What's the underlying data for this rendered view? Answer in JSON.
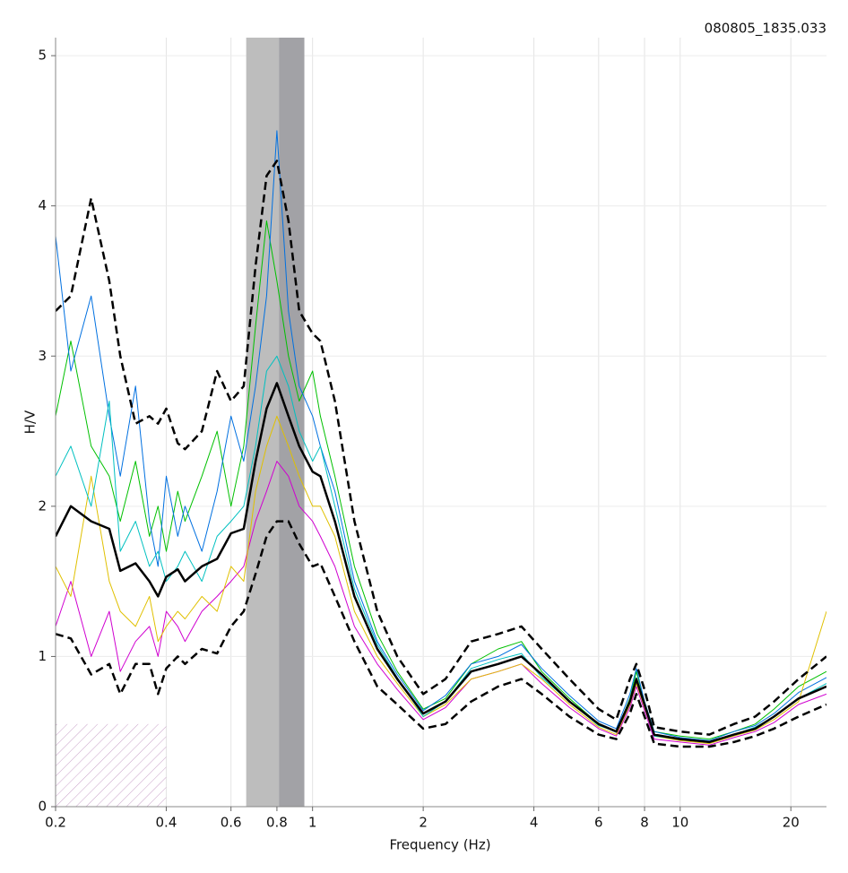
{
  "chart_data": {
    "type": "line",
    "title": "080805_1835.033",
    "xlabel": "Frequency (Hz)",
    "ylabel": "H/V",
    "xscale": "log",
    "grid": true,
    "xlim": [
      0.2,
      25
    ],
    "ylim": [
      0,
      5.12
    ],
    "xticks": [
      0.2,
      0.4,
      0.6,
      0.8,
      1,
      2,
      4,
      6,
      8,
      10,
      20
    ],
    "yticks": [
      0,
      1,
      2,
      3,
      4,
      5
    ],
    "shaded_ranges": [
      {
        "range": [
          0.66,
          0.81
        ],
        "color": "#bdbdbd"
      },
      {
        "range": [
          0.81,
          0.95
        ],
        "color": "#a2a2a6"
      }
    ],
    "hatched_region": {
      "xrange": [
        0.2,
        0.4
      ],
      "ytop": 0.55,
      "color": "#c9a0c9"
    },
    "x": [
      0.2,
      0.22,
      0.25,
      0.28,
      0.3,
      0.33,
      0.36,
      0.38,
      0.4,
      0.43,
      0.45,
      0.5,
      0.55,
      0.6,
      0.65,
      0.7,
      0.75,
      0.8,
      0.86,
      0.92,
      1.0,
      1.05,
      1.15,
      1.3,
      1.5,
      1.7,
      2.0,
      2.3,
      2.7,
      3.2,
      3.7,
      4.2,
      5,
      6,
      6.7,
      7.3,
      7.6,
      8,
      8.5,
      10,
      12,
      14,
      16,
      18,
      21,
      25
    ],
    "series": [
      {
        "color": "#00c000",
        "width": 1,
        "values": [
          2.6,
          3.1,
          2.4,
          2.2,
          1.9,
          2.3,
          1.8,
          2.0,
          1.7,
          2.1,
          1.9,
          2.2,
          2.5,
          2.0,
          2.4,
          3.2,
          3.9,
          3.5,
          3.0,
          2.7,
          2.9,
          2.6,
          2.2,
          1.6,
          1.15,
          0.9,
          0.65,
          0.72,
          0.95,
          1.05,
          1.1,
          0.9,
          0.72,
          0.55,
          0.5,
          0.72,
          0.9,
          0.7,
          0.5,
          0.47,
          0.45,
          0.5,
          0.55,
          0.65,
          0.8,
          0.9
        ]
      },
      {
        "color": "#d000d0",
        "width": 1,
        "values": [
          1.2,
          1.5,
          1.0,
          1.3,
          0.9,
          1.1,
          1.2,
          1.0,
          1.3,
          1.2,
          1.1,
          1.3,
          1.4,
          1.5,
          1.6,
          1.9,
          2.1,
          2.3,
          2.2,
          2.0,
          1.9,
          1.8,
          1.6,
          1.2,
          0.95,
          0.78,
          0.58,
          0.66,
          0.85,
          0.9,
          0.95,
          0.82,
          0.66,
          0.52,
          0.47,
          0.66,
          0.8,
          0.64,
          0.45,
          0.43,
          0.41,
          0.46,
          0.5,
          0.56,
          0.68,
          0.75
        ]
      },
      {
        "color": "#0070e0",
        "width": 1,
        "values": [
          3.8,
          2.9,
          3.4,
          2.6,
          2.2,
          2.8,
          1.9,
          1.6,
          2.2,
          1.8,
          2.0,
          1.7,
          2.1,
          2.6,
          2.3,
          2.8,
          3.4,
          4.5,
          3.3,
          2.8,
          2.6,
          2.4,
          2.1,
          1.5,
          1.1,
          0.88,
          0.64,
          0.74,
          0.95,
          1.0,
          1.08,
          0.92,
          0.74,
          0.57,
          0.52,
          0.75,
          0.92,
          0.7,
          0.5,
          0.46,
          0.44,
          0.5,
          0.54,
          0.62,
          0.76,
          0.86
        ]
      },
      {
        "color": "#e0c000",
        "width": 1,
        "values": [
          1.6,
          1.4,
          2.2,
          1.5,
          1.3,
          1.2,
          1.4,
          1.1,
          1.2,
          1.3,
          1.25,
          1.4,
          1.3,
          1.6,
          1.5,
          2.1,
          2.4,
          2.6,
          2.4,
          2.2,
          2.0,
          2.0,
          1.8,
          1.3,
          1.0,
          0.82,
          0.6,
          0.68,
          0.85,
          0.9,
          0.95,
          0.85,
          0.68,
          0.53,
          0.48,
          0.68,
          0.82,
          0.66,
          0.47,
          0.44,
          0.42,
          0.47,
          0.51,
          0.58,
          0.7,
          1.3
        ]
      },
      {
        "color": "#00c0c0",
        "width": 1,
        "values": [
          2.2,
          2.4,
          2.0,
          2.7,
          1.7,
          1.9,
          1.6,
          1.7,
          1.5,
          1.6,
          1.7,
          1.5,
          1.8,
          1.9,
          2.0,
          2.4,
          2.9,
          3.0,
          2.8,
          2.5,
          2.3,
          2.4,
          2.0,
          1.45,
          1.08,
          0.86,
          0.6,
          0.7,
          0.92,
          0.98,
          1.02,
          0.86,
          0.7,
          0.54,
          0.5,
          0.7,
          0.86,
          0.68,
          0.47,
          0.45,
          0.43,
          0.48,
          0.53,
          0.6,
          0.72,
          0.82
        ]
      },
      {
        "color": "#000000",
        "width": 2.5,
        "dash": true,
        "values": [
          3.3,
          3.4,
          4.05,
          3.5,
          3.0,
          2.55,
          2.6,
          2.55,
          2.65,
          2.42,
          2.38,
          2.5,
          2.9,
          2.7,
          2.8,
          3.6,
          4.2,
          4.3,
          3.9,
          3.3,
          3.15,
          3.1,
          2.7,
          1.9,
          1.3,
          1.0,
          0.75,
          0.85,
          1.1,
          1.15,
          1.2,
          1.05,
          0.85,
          0.65,
          0.58,
          0.85,
          0.95,
          0.78,
          0.53,
          0.5,
          0.48,
          0.55,
          0.6,
          0.7,
          0.85,
          1.0
        ]
      },
      {
        "color": "#000000",
        "width": 2.5,
        "dash": true,
        "values": [
          1.15,
          1.12,
          0.88,
          0.95,
          0.75,
          0.95,
          0.95,
          0.75,
          0.92,
          1.0,
          0.95,
          1.05,
          1.02,
          1.2,
          1.3,
          1.55,
          1.8,
          1.9,
          1.9,
          1.75,
          1.6,
          1.62,
          1.4,
          1.1,
          0.8,
          0.68,
          0.52,
          0.55,
          0.7,
          0.8,
          0.85,
          0.75,
          0.6,
          0.48,
          0.45,
          0.62,
          0.75,
          0.6,
          0.42,
          0.4,
          0.4,
          0.43,
          0.47,
          0.52,
          0.6,
          0.68
        ]
      },
      {
        "color": "#000000",
        "width": 2.5,
        "values": [
          1.8,
          2.0,
          1.9,
          1.85,
          1.57,
          1.62,
          1.5,
          1.4,
          1.53,
          1.58,
          1.5,
          1.6,
          1.65,
          1.82,
          1.85,
          2.3,
          2.65,
          2.82,
          2.6,
          2.4,
          2.23,
          2.2,
          1.9,
          1.4,
          1.05,
          0.85,
          0.62,
          0.7,
          0.9,
          0.95,
          1.0,
          0.88,
          0.7,
          0.55,
          0.5,
          0.7,
          0.85,
          0.68,
          0.48,
          0.45,
          0.43,
          0.48,
          0.52,
          0.6,
          0.72,
          0.8
        ]
      }
    ]
  }
}
